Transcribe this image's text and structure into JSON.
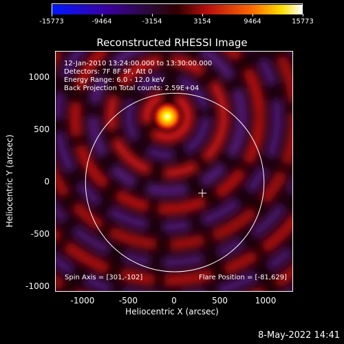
{
  "colorbar": {
    "ticks": [
      "-15773",
      "-9464",
      "-3154",
      "3154",
      "9464",
      "15773"
    ]
  },
  "title": "Reconstructed RHESSI Image",
  "info": {
    "time": "12-Jan-2010 13:24:00.000 to 13:30:00.000",
    "detectors": "Detectors: 7F 8F 9F, Att 0",
    "energy": "Energy Range: 6.0 - 12.0 keV",
    "method": "Back Projection    Total counts: 2.59E+04",
    "spin_axis": "Spin Axis = [301,-102]",
    "flare_position": "Flare Position = [-81,629]"
  },
  "axes": {
    "xlabel": "Heliocentric X (arcsec)",
    "ylabel": "Heliocentric Y (arcsec)",
    "xticks": [
      "-1000",
      "-500",
      "0",
      "500",
      "1000"
    ],
    "yticks": [
      "1000",
      "500",
      "0",
      "-500",
      "-1000"
    ]
  },
  "timestamp": "8-May-2022 14:41",
  "chart_data": {
    "type": "heatmap",
    "title": "Reconstructed RHESSI Image",
    "xlabel": "Heliocentric X (arcsec)",
    "ylabel": "Heliocentric Y (arcsec)",
    "xlim": [
      -1300,
      1300
    ],
    "ylim": [
      -1050,
      1250
    ],
    "color_range": [
      -15773,
      15773
    ],
    "colormap": [
      "#0000ff",
      "#3a0070",
      "#3a0000",
      "#c01010",
      "#ff8000",
      "#ffff00",
      "#ffffff"
    ],
    "peak": {
      "x": -81,
      "y": 629
    },
    "spin_axis": {
      "x": 301,
      "y": -102
    },
    "solar_disk_radius_arcsec": 975
  }
}
